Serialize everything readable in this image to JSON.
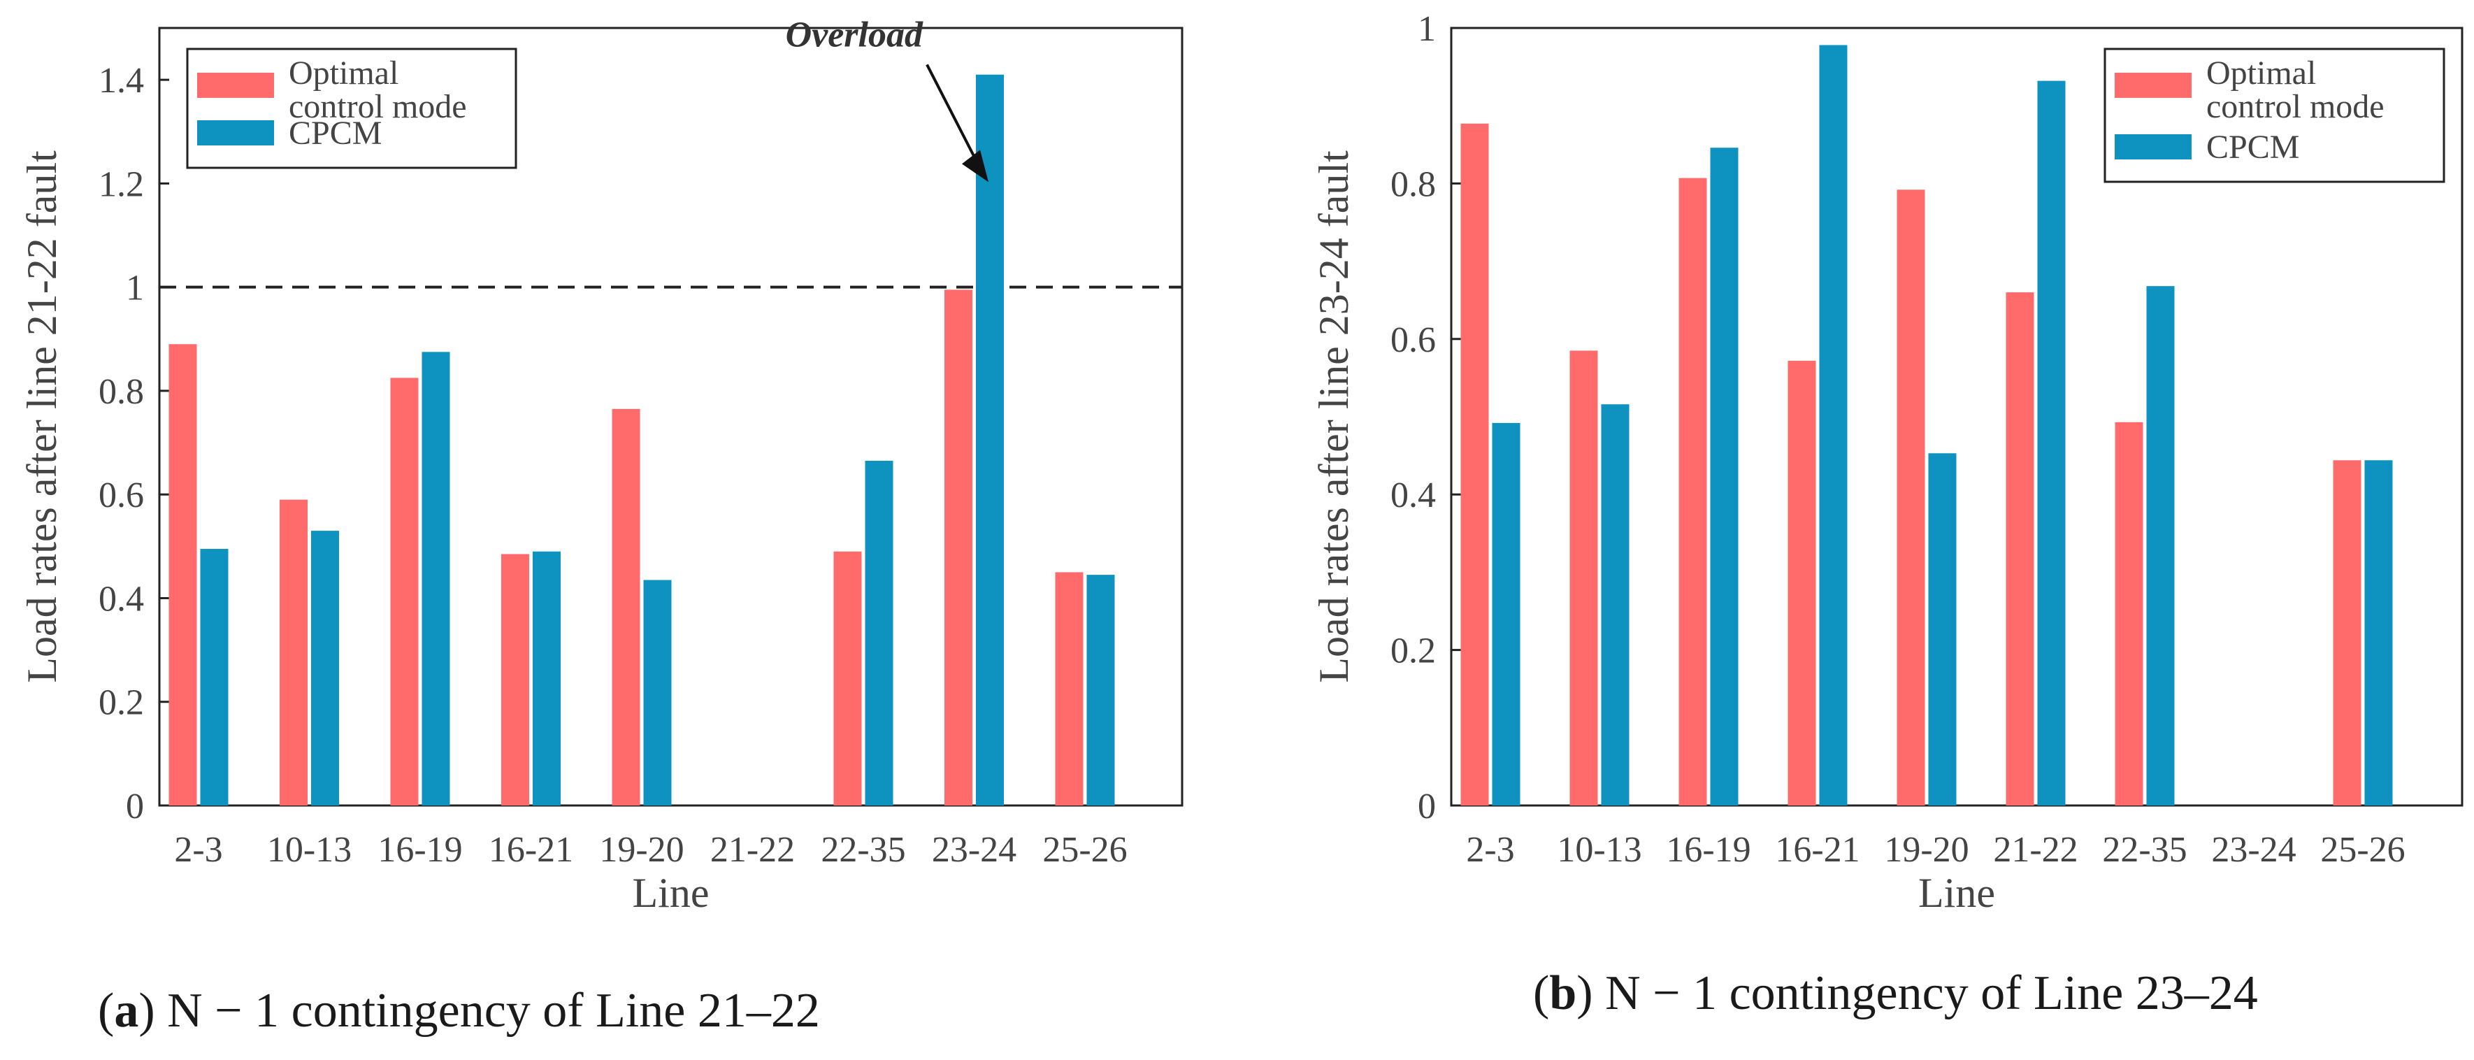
{
  "chart_data": [
    {
      "type": "bar",
      "panel_label": "a",
      "caption": "N − 1 contingency of Line 21–22",
      "xlabel": "Line",
      "ylabel": "Load rates after line 21-22 fault",
      "ylim": [
        0,
        1.5
      ],
      "yticks": [
        0,
        0.2,
        0.4,
        0.6,
        0.8,
        1,
        1.2,
        1.4
      ],
      "ytick_labels": [
        "0",
        "0.2",
        "0.4",
        "0.6",
        "0.8",
        "1",
        "1.2",
        "1.4"
      ],
      "categories": [
        "2-3",
        "10-13",
        "16-19",
        "16-21",
        "19-20",
        "21-22",
        "22-35",
        "23-24",
        "25-26"
      ],
      "series": [
        {
          "name": "Optimal control mode",
          "legend_lines": [
            "Optimal",
            "control mode"
          ],
          "color": "#ff6b6b",
          "values": [
            0.89,
            0.59,
            0.825,
            0.485,
            0.765,
            0,
            0.49,
            0.995,
            0.45
          ]
        },
        {
          "name": "CPCM",
          "legend_lines": [
            "CPCM"
          ],
          "color": "#0e93c1",
          "values": [
            0.495,
            0.53,
            0.875,
            0.49,
            0.435,
            0,
            0.665,
            1.41,
            0.445
          ]
        }
      ],
      "reference_line": {
        "value": 1,
        "style": "dashed"
      },
      "annotation": {
        "text": "Overload",
        "category": "23-24",
        "series": "CPCM",
        "value": 1.2
      },
      "legend_position": "top-left"
    },
    {
      "type": "bar",
      "panel_label": "b",
      "caption": "N − 1 contingency of Line 23–24",
      "xlabel": "Line",
      "ylabel": "Load rates after line 23-24 fault",
      "ylim": [
        0,
        1
      ],
      "yticks": [
        0,
        0.2,
        0.4,
        0.6,
        0.8,
        1
      ],
      "ytick_labels": [
        "0",
        "0.2",
        "0.4",
        "0.6",
        "0.8",
        "1"
      ],
      "categories": [
        "2-3",
        "10-13",
        "16-19",
        "16-21",
        "19-20",
        "21-22",
        "22-35",
        "23-24",
        "25-26"
      ],
      "series": [
        {
          "name": "Optimal control mode",
          "legend_lines": [
            "Optimal",
            "control mode"
          ],
          "color": "#ff6b6b",
          "values": [
            0.877,
            0.585,
            0.807,
            0.572,
            0.792,
            0.66,
            0.493,
            0,
            0.444
          ]
        },
        {
          "name": "CPCM",
          "legend_lines": [
            "CPCM"
          ],
          "color": "#0e93c1",
          "values": [
            0.492,
            0.516,
            0.846,
            0.978,
            0.453,
            0.932,
            0.668,
            0,
            0.444
          ]
        }
      ],
      "legend_position": "top-right"
    }
  ]
}
